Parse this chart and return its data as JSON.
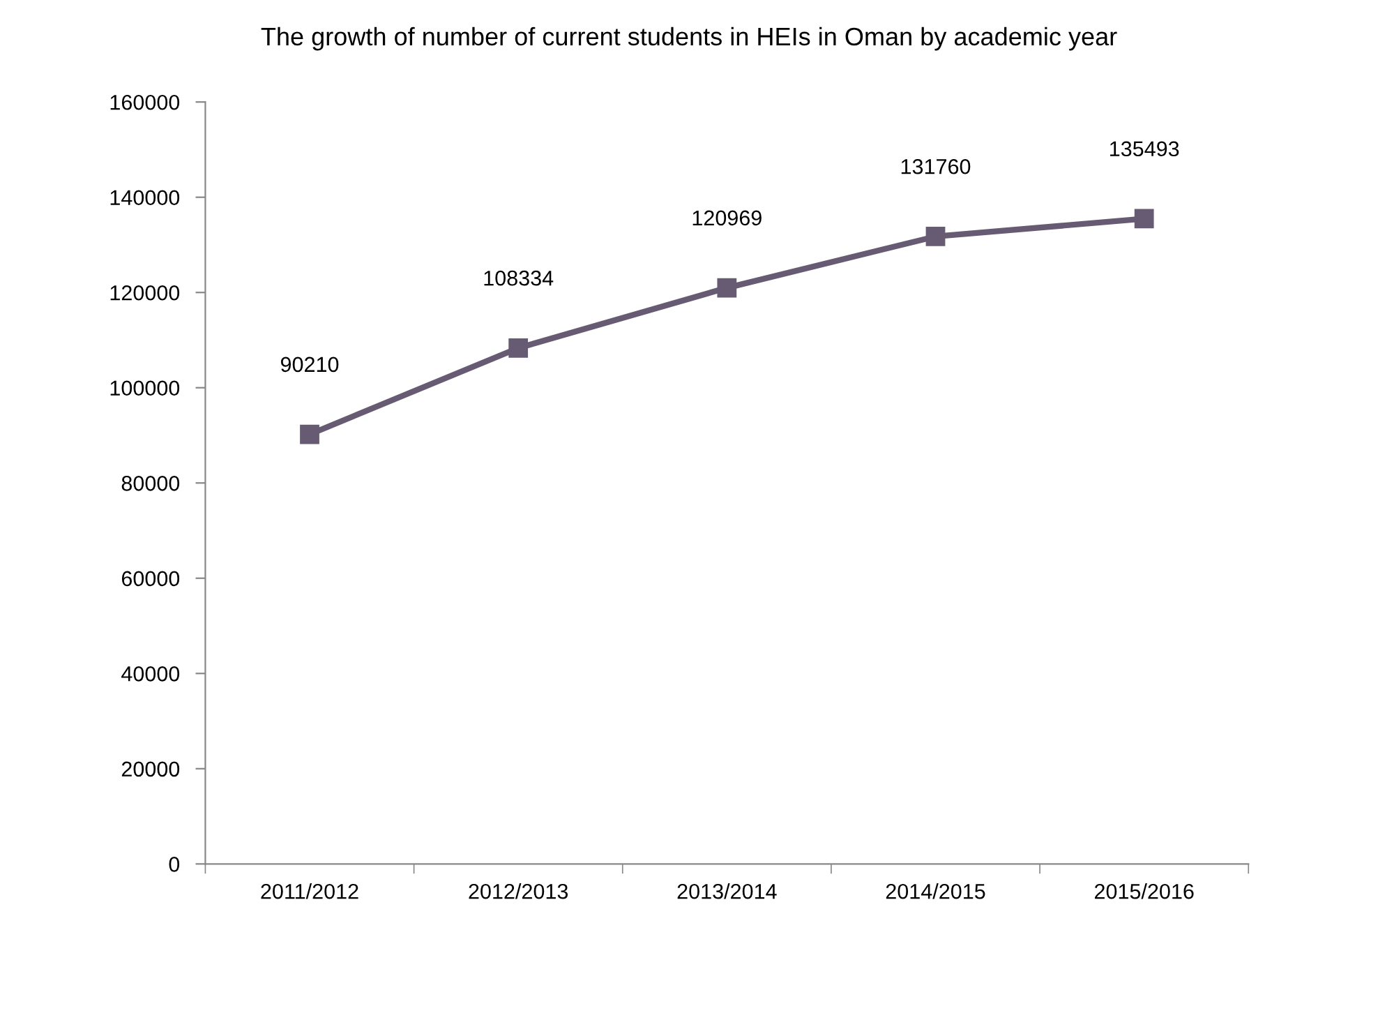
{
  "chart_data": {
    "type": "line",
    "title": "The growth of number of current students in HEIs in Oman by academic year",
    "categories": [
      "2011/2012",
      "2012/2013",
      "2013/2014",
      "2014/2015",
      "2015/2016"
    ],
    "series": [
      {
        "color": "#675b74",
        "values": [
          90210,
          108334,
          120969,
          131760,
          135493
        ]
      }
    ],
    "ylim": [
      0,
      160000
    ],
    "yticks": [
      0,
      20000,
      40000,
      60000,
      80000,
      100000,
      120000,
      140000,
      160000
    ],
    "marker": "square",
    "line_style": "solid",
    "data_labels": true,
    "grid": false,
    "legend": false
  }
}
